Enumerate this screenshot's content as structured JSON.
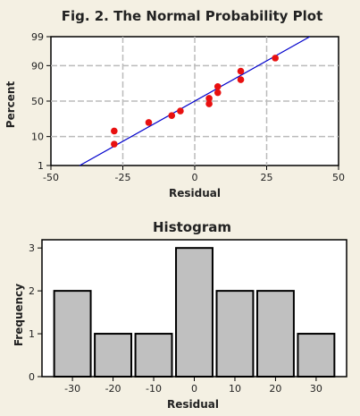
{
  "chart_data": [
    {
      "type": "scatter",
      "title": "Fig. 2. The Normal Probability Plot",
      "xlabel": "Residual",
      "ylabel": "Percent",
      "xlim": [
        -50,
        50
      ],
      "ylim": [
        1,
        99
      ],
      "y_scale": "normal-probability",
      "x_ticks": [
        -50,
        -25,
        0,
        25,
        50
      ],
      "y_ticks": [
        1,
        10,
        50,
        90,
        99
      ],
      "grid": true,
      "fit_line": {
        "description": "normal fit",
        "color": "#0000cc",
        "points": [
          [
            -40,
            1
          ],
          [
            40,
            99
          ]
        ]
      },
      "points": [
        [
          -28,
          14
        ],
        [
          -28,
          6
        ],
        [
          -16,
          22
        ],
        [
          -8,
          30
        ],
        [
          -5,
          36
        ],
        [
          5,
          46
        ],
        [
          5,
          54
        ],
        [
          8,
          62
        ],
        [
          8,
          70
        ],
        [
          16,
          78
        ],
        [
          16,
          86
        ],
        [
          28,
          94
        ]
      ],
      "point_color": "#e81010"
    },
    {
      "type": "bar",
      "title": "Histogram",
      "xlabel": "Residual",
      "ylabel": "Frequency",
      "xlim": [
        -37.5,
        37.5
      ],
      "ylim": [
        0,
        3
      ],
      "x_ticks": [
        -30,
        -20,
        -10,
        0,
        10,
        20,
        30
      ],
      "y_ticks": [
        0,
        1,
        2,
        3
      ],
      "bin_width": 10,
      "bins": [
        {
          "center": -30,
          "value": 2
        },
        {
          "center": -20,
          "value": 1
        },
        {
          "center": -10,
          "value": 1
        },
        {
          "center": 0,
          "value": 3
        },
        {
          "center": 10,
          "value": 2
        },
        {
          "center": 20,
          "value": 2
        },
        {
          "center": 30,
          "value": 1
        }
      ],
      "bar_color": "#c0c0c0"
    }
  ],
  "colors": {
    "background": "#f4f0e3",
    "plot_area": "#ffffff",
    "grid": "#bbbbbb"
  }
}
